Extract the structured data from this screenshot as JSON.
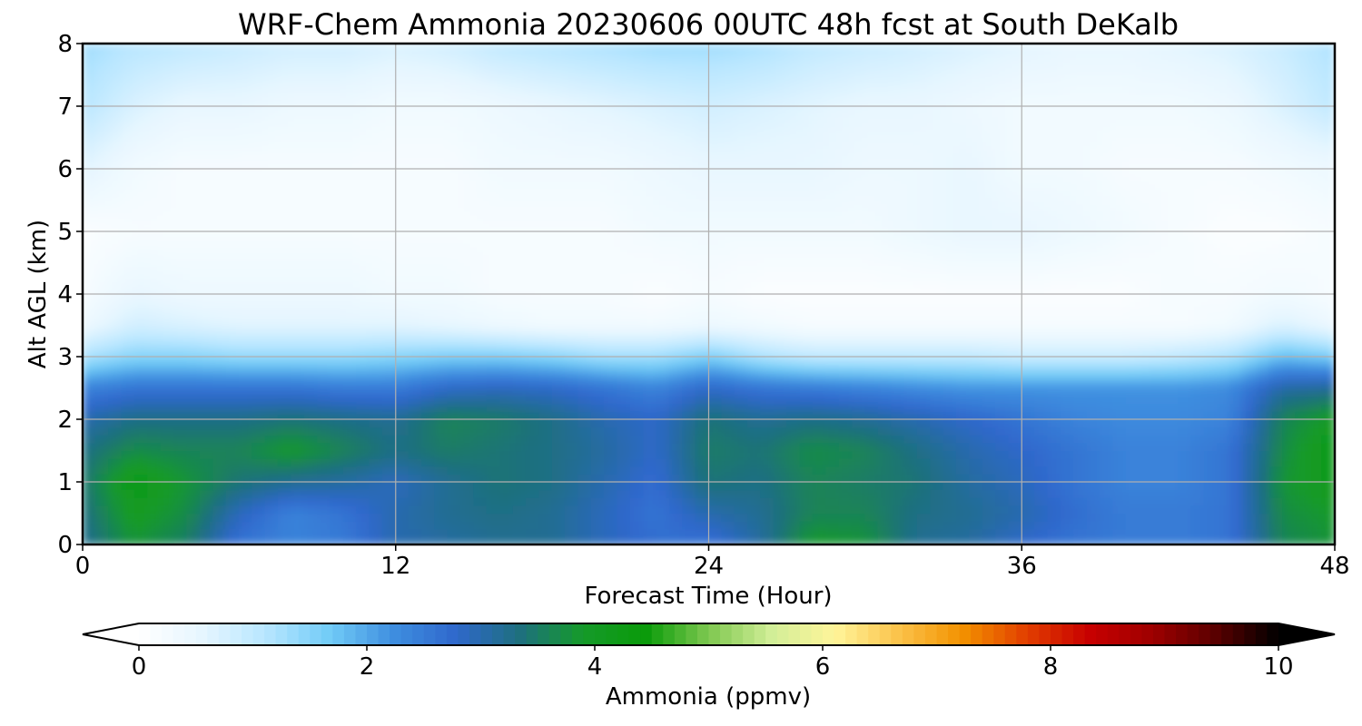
{
  "chart_data": {
    "type": "heatmap",
    "title": "WRF-Chem Ammonia  20230606 00UTC 48h fcst at South DeKalb",
    "xlabel": "Forecast Time (Hour)",
    "ylabel": "Alt AGL (km)",
    "xlim": [
      0,
      48
    ],
    "ylim": [
      0,
      8
    ],
    "xticks": [
      0,
      12,
      24,
      36,
      48
    ],
    "yticks": [
      0,
      1,
      2,
      3,
      4,
      5,
      6,
      7,
      8
    ],
    "grid": true,
    "x": [
      0,
      2,
      4,
      6,
      8,
      10,
      12,
      14,
      16,
      18,
      20,
      22,
      24,
      26,
      28,
      30,
      32,
      34,
      36,
      38,
      40,
      42,
      44,
      46,
      48
    ],
    "y": [
      0,
      0.5,
      1,
      1.5,
      2,
      2.5,
      3,
      3.5,
      4,
      5,
      6,
      7,
      8
    ],
    "z": [
      [
        3.2,
        3.8,
        3.5,
        2.6,
        2.4,
        2.5,
        3.0,
        3.1,
        3.2,
        3.2,
        2.9,
        2.7,
        2.6,
        3.1,
        3.9,
        3.8,
        3.2,
        3.1,
        2.8,
        2.6,
        2.5,
        2.5,
        2.6,
        3.6,
        3.8
      ],
      [
        3.3,
        4.0,
        3.7,
        2.9,
        2.4,
        2.6,
        3.0,
        3.2,
        3.3,
        3.2,
        2.9,
        2.6,
        3.0,
        3.2,
        3.6,
        3.6,
        3.3,
        3.2,
        3.0,
        2.7,
        2.5,
        2.5,
        2.6,
        3.7,
        3.9
      ],
      [
        3.4,
        4.2,
        3.8,
        3.4,
        3.2,
        3.1,
        2.9,
        3.2,
        3.4,
        3.3,
        3.0,
        2.7,
        3.4,
        3.3,
        3.6,
        3.5,
        3.4,
        3.1,
        2.9,
        2.6,
        2.4,
        2.4,
        2.6,
        3.8,
        4.1
      ],
      [
        3.3,
        3.7,
        3.6,
        3.6,
        3.9,
        3.6,
        3.3,
        3.5,
        3.4,
        3.3,
        3.1,
        2.8,
        3.5,
        3.4,
        3.7,
        3.6,
        3.3,
        3.0,
        2.8,
        2.6,
        2.4,
        2.4,
        2.6,
        3.7,
        4.2
      ],
      [
        3.0,
        3.3,
        3.3,
        3.3,
        3.4,
        3.3,
        3.2,
        3.6,
        3.5,
        3.3,
        3.0,
        2.8,
        3.4,
        3.2,
        3.3,
        3.2,
        3.0,
        2.8,
        2.6,
        2.4,
        2.3,
        2.3,
        2.4,
        3.6,
        4.0
      ],
      [
        2.4,
        2.6,
        2.6,
        2.6,
        2.6,
        2.5,
        2.5,
        2.8,
        2.9,
        2.8,
        2.6,
        2.4,
        2.8,
        2.6,
        2.5,
        2.4,
        2.3,
        2.2,
        2.2,
        2.2,
        2.2,
        2.2,
        2.3,
        3.1,
        3.2
      ],
      [
        1.2,
        1.5,
        1.5,
        1.4,
        1.4,
        1.4,
        1.5,
        1.6,
        1.6,
        1.5,
        1.3,
        1.3,
        1.6,
        1.2,
        1.0,
        1.0,
        1.0,
        1.0,
        0.9,
        0.9,
        0.9,
        1.0,
        1.2,
        1.8,
        1.6
      ],
      [
        0.4,
        0.8,
        0.7,
        0.6,
        0.6,
        0.6,
        0.6,
        0.5,
        0.4,
        0.3,
        0.3,
        0.3,
        0.4,
        0.3,
        0.2,
        0.2,
        0.2,
        0.2,
        0.2,
        0.2,
        0.2,
        0.2,
        0.3,
        0.7,
        0.4
      ],
      [
        0.2,
        0.5,
        0.4,
        0.4,
        0.4,
        0.4,
        0.3,
        0.3,
        0.2,
        0.2,
        0.2,
        0.1,
        0.2,
        0.1,
        0.1,
        0.1,
        0.1,
        0.1,
        0.1,
        0.1,
        0.1,
        0.2,
        0.2,
        0.3,
        0.2
      ],
      [
        0.1,
        0.2,
        0.2,
        0.2,
        0.2,
        0.2,
        0.2,
        0.2,
        0.2,
        0.2,
        0.2,
        0.3,
        0.3,
        0.3,
        0.3,
        0.3,
        0.4,
        0.5,
        0.5,
        0.4,
        0.3,
        0.2,
        0.1,
        0.1,
        0.2
      ],
      [
        0.6,
        0.3,
        0.2,
        0.2,
        0.2,
        0.2,
        0.2,
        0.2,
        0.3,
        0.3,
        0.3,
        0.4,
        0.5,
        0.5,
        0.5,
        0.4,
        0.4,
        0.5,
        0.3,
        0.3,
        0.2,
        0.2,
        0.2,
        0.3,
        0.4
      ],
      [
        1.1,
        0.7,
        0.5,
        0.5,
        0.4,
        0.4,
        0.3,
        0.3,
        0.4,
        0.5,
        0.6,
        0.7,
        0.8,
        0.7,
        0.6,
        0.5,
        0.5,
        0.4,
        0.3,
        0.3,
        0.3,
        0.3,
        0.4,
        0.7,
        1.0
      ],
      [
        1.3,
        1.1,
        1.0,
        0.9,
        0.8,
        0.8,
        0.7,
        0.8,
        1.0,
        1.1,
        1.2,
        1.3,
        1.3,
        1.2,
        1.0,
        0.9,
        0.8,
        0.7,
        0.6,
        0.5,
        0.5,
        0.6,
        0.7,
        0.9,
        1.2
      ]
    ],
    "colorbar": {
      "label": "Ammonia  (ppmv)",
      "min": 0,
      "max": 10,
      "ticks": [
        0,
        2,
        4,
        6,
        8,
        10
      ],
      "extend": "both",
      "colors": [
        "#ffffff",
        "#e6f6ff",
        "#b8e6ff",
        "#72ccf7",
        "#3f8fe0",
        "#2f68cc",
        "#1e6f80",
        "#159a2a",
        "#0a9b0a",
        "#7ec850",
        "#d2ee98",
        "#fff59a",
        "#fbc24a",
        "#f39200",
        "#e24000",
        "#c80000",
        "#9e0000",
        "#5a0000",
        "#000000"
      ]
    }
  }
}
